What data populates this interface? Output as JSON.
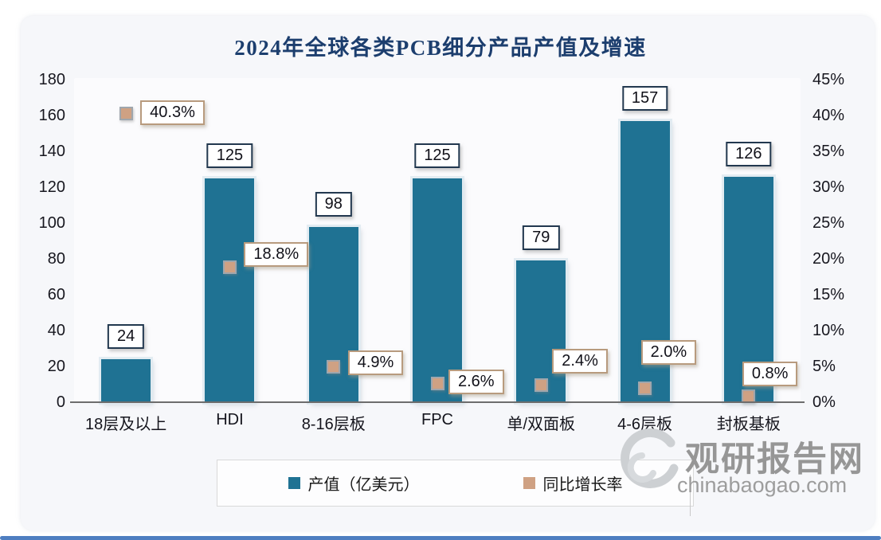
{
  "chart_data": {
    "type": "bar",
    "title": "2024年全球各类PCB细分产品产值及增速",
    "categories": [
      "18层及以上",
      "HDI",
      "8-16层板",
      "FPC",
      "单/双面板",
      "4-6层板",
      "封板基板"
    ],
    "series": [
      {
        "name": "产值（亿美元）",
        "chart_type": "bar",
        "axis": "left",
        "color": "#1f7293",
        "values": [
          24,
          125,
          98,
          125,
          79,
          157,
          126
        ],
        "data_labels": [
          "24",
          "125",
          "98",
          "125",
          "79",
          "157",
          "126"
        ]
      },
      {
        "name": "同比增长率",
        "chart_type": "point",
        "axis": "right",
        "color": "#cfa183",
        "values": [
          40.3,
          18.8,
          4.9,
          2.6,
          2.4,
          2.0,
          0.8
        ],
        "data_labels": [
          "40.3%",
          "18.8%",
          "4.9%",
          "2.6%",
          "2.4%",
          "2.0%",
          "0.8%"
        ]
      }
    ],
    "left_axis": {
      "min": 0,
      "max": 180,
      "step": 20,
      "tick_labels": [
        "180",
        "160",
        "140",
        "120",
        "100",
        "80",
        "60",
        "40",
        "20",
        "0"
      ]
    },
    "right_axis": {
      "min": 0,
      "max": 45,
      "step": 5,
      "tick_labels": [
        "45%",
        "40%",
        "35%",
        "30%",
        "25%",
        "20%",
        "15%",
        "10%",
        "5%",
        "0%"
      ]
    },
    "grid": false,
    "legend_position": "bottom"
  },
  "legend": {
    "items": [
      {
        "label": "产值（亿美元）",
        "color": "#1f7293"
      },
      {
        "label": "同比增长率",
        "color": "#cfa183"
      }
    ]
  },
  "watermark": {
    "site_name": "观研报告网",
    "site_url": "chinabaogao.com"
  },
  "colors": {
    "bar": "#1f7293",
    "growth_marker": "#cfa183",
    "title_text": "#1c3e6e",
    "value_box_border": "#22384f",
    "percent_box_border": "#b89b7e",
    "axis_line": "#6d6d6d",
    "bottom_bar": "#4e7ec0",
    "card_background": "#f6f7fa"
  }
}
